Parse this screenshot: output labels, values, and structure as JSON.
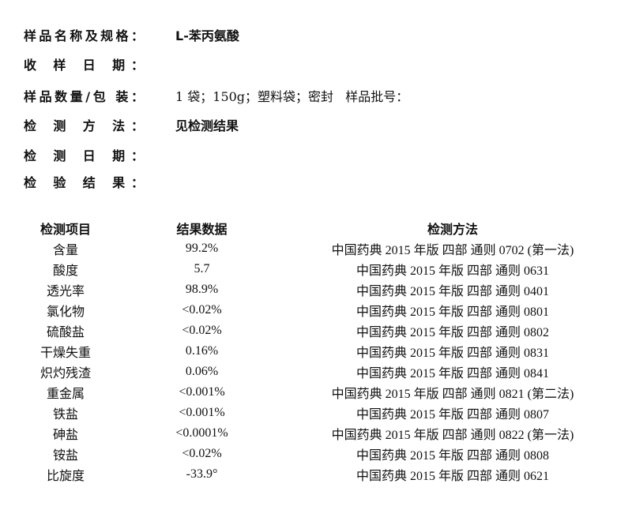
{
  "fields": [
    {
      "label": "样品名称及规格：",
      "value": "L-苯丙氨酸"
    },
    {
      "label": "收 样 日 期：",
      "value": ""
    },
    {
      "label": "样品数量/包 装：",
      "value": "1 袋；150g；塑料袋；密封   样品批号："
    },
    {
      "label": "检 测 方 法：",
      "value": "见检测结果"
    },
    {
      "label": "检 测 日 期：",
      "value": ""
    },
    {
      "label": "检 验 结 果：",
      "value": ""
    }
  ],
  "table": {
    "headers": [
      "检测项目",
      "结果数据",
      "检测方法"
    ],
    "rows": [
      [
        "含量",
        "99.2%",
        "中国药典 2015 年版 四部 通则 0702 (第一法)"
      ],
      [
        "酸度",
        "5.7",
        "中国药典 2015 年版 四部 通则 0631"
      ],
      [
        "透光率",
        "98.9%",
        "中国药典 2015 年版 四部 通则 0401"
      ],
      [
        "氯化物",
        "<0.02%",
        "中国药典 2015 年版 四部 通则 0801"
      ],
      [
        "硫酸盐",
        "<0.02%",
        "中国药典 2015 年版 四部 通则 0802"
      ],
      [
        "干燥失重",
        "0.16%",
        "中国药典 2015 年版 四部 通则 0831"
      ],
      [
        "炽灼残渣",
        "0.06%",
        "中国药典 2015 年版 四部 通则 0841"
      ],
      [
        "重金属",
        "<0.001%",
        "中国药典 2015 年版 四部 通则 0821 (第二法)"
      ],
      [
        "铁盐",
        "<0.001%",
        "中国药典 2015 年版 四部 通则 0807"
      ],
      [
        "砷盐",
        "<0.0001%",
        "中国药典 2015 年版 四部 通则 0822 (第一法)"
      ],
      [
        "铵盐",
        "<0.02%",
        "中国药典 2015 年版 四部 通则 0808"
      ],
      [
        "比旋度",
        "-33.9°",
        "中国药典 2015 年版 四部 通则 0621"
      ]
    ]
  }
}
